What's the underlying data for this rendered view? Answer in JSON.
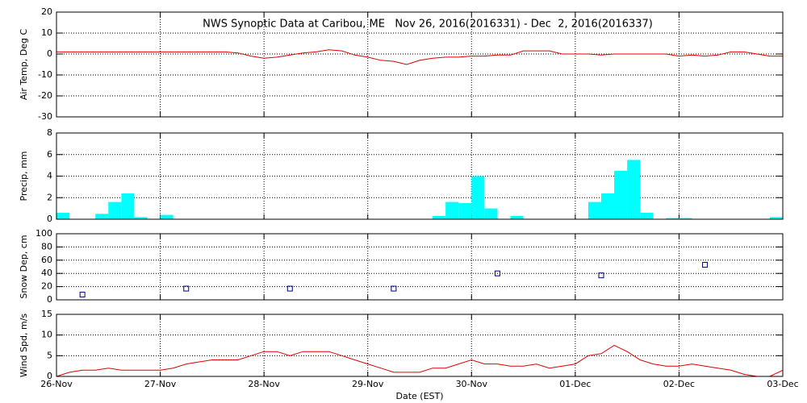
{
  "chart_data": [
    {
      "type": "line",
      "title": "NWS Synoptic Data at Caribou, ME   Nov 26, 2016(2016331) - Dec  2, 2016(2016337)",
      "ylabel": "Air Temp, Deg C",
      "color": "#e00000",
      "grid": true,
      "ylim": [
        -30,
        20
      ],
      "yticks": [
        -30,
        -20,
        -10,
        0,
        10,
        20
      ],
      "values": [
        1,
        1,
        1,
        1,
        1,
        1,
        1,
        1,
        1,
        1,
        1,
        1,
        1,
        1,
        0.5,
        -1,
        -2,
        -1.5,
        -0.5,
        0.5,
        1,
        2,
        1.5,
        -0.5,
        -1.5,
        -3,
        -3.5,
        -5,
        -3,
        -2,
        -1.5,
        -1.5,
        -1,
        -1,
        -0.5,
        -0.5,
        1.5,
        1.5,
        1.5,
        0,
        0,
        0,
        -0.5,
        0,
        0,
        0,
        0,
        0,
        -1,
        -0.5,
        -1,
        -0.5,
        1,
        1,
        0,
        -1,
        -1
      ]
    },
    {
      "type": "bar",
      "ylabel": "Precip, mm",
      "color": "#00ffff",
      "grid": true,
      "ylim": [
        0,
        8
      ],
      "yticks": [
        0,
        2,
        4,
        6,
        8
      ],
      "values": [
        0.6,
        0,
        0,
        0.5,
        1.6,
        2.4,
        0.2,
        0,
        0.4,
        0,
        0,
        0,
        0,
        0,
        0,
        0,
        0,
        0,
        0,
        0,
        0,
        0,
        0,
        0,
        0,
        0,
        0,
        0,
        0,
        0.3,
        1.6,
        1.5,
        4,
        1,
        0,
        0.3,
        0,
        0,
        0,
        0,
        0,
        1.6,
        2.4,
        4.5,
        5.5,
        0.6,
        0,
        0.1,
        0.1,
        0,
        0,
        0,
        0,
        0,
        0,
        0.2
      ]
    },
    {
      "type": "scatter",
      "ylabel": "Snow Dep, cm",
      "color": "#000080",
      "grid": true,
      "ylim": [
        0,
        100
      ],
      "yticks": [
        0,
        20,
        40,
        60,
        80,
        100
      ],
      "values": [
        8,
        17,
        17,
        17,
        40,
        37,
        53
      ]
    },
    {
      "type": "line",
      "ylabel": "Wind Spd, m/s",
      "xlabel": "Date (EST)",
      "color": "#e00000",
      "grid": true,
      "ylim": [
        0,
        15
      ],
      "yticks": [
        0,
        5,
        10,
        15
      ],
      "xticks": [
        "26-Nov",
        "27-Nov",
        "28-Nov",
        "29-Nov",
        "30-Nov",
        "01-Dec",
        "02-Dec",
        "03-Dec"
      ],
      "values": [
        0,
        1,
        1.5,
        1.5,
        2,
        1.5,
        1.5,
        1.5,
        1.5,
        2,
        3,
        3.5,
        4,
        4,
        4,
        5,
        6,
        6,
        5,
        6,
        6,
        6,
        5,
        4,
        3,
        2,
        1,
        1,
        1,
        2,
        2,
        3,
        4,
        3,
        3,
        2.5,
        2.5,
        3,
        2,
        2.5,
        3,
        5,
        5.5,
        7.5,
        6,
        4,
        3,
        2.5,
        2.5,
        3,
        2.5,
        2,
        1.5,
        0.5,
        0,
        0,
        1.5
      ]
    }
  ]
}
